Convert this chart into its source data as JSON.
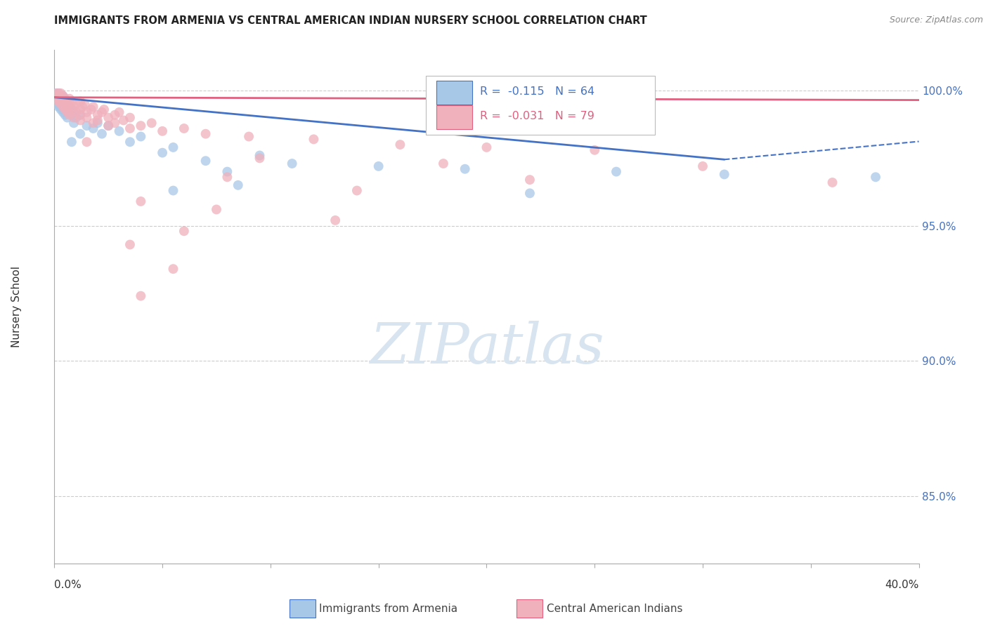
{
  "title": "IMMIGRANTS FROM ARMENIA VS CENTRAL AMERICAN INDIAN NURSERY SCHOOL CORRELATION CHART",
  "source": "Source: ZipAtlas.com",
  "ylabel": "Nursery School",
  "yticks_labels": [
    "85.0%",
    "90.0%",
    "95.0%",
    "100.0%"
  ],
  "ytick_values": [
    0.85,
    0.9,
    0.95,
    1.0
  ],
  "xlim": [
    0.0,
    0.4
  ],
  "ylim": [
    0.825,
    1.015
  ],
  "legend_label1": "Immigrants from Armenia",
  "legend_label2": "Central American Indians",
  "R1": -0.115,
  "N1": 64,
  "R2": -0.031,
  "N2": 79,
  "color_blue": "#A8C8E8",
  "color_pink": "#F0B0BC",
  "color_blue_line": "#4472C4",
  "color_pink_line": "#E06080",
  "background_color": "#FFFFFF",
  "grid_color": "#CCCCCC",
  "title_color": "#222222",
  "watermark_color": "#D8E4F0",
  "right_axis_color": "#4472C4",
  "scatter_blue": [
    [
      0.001,
      0.999
    ],
    [
      0.002,
      0.999
    ],
    [
      0.003,
      0.998
    ],
    [
      0.004,
      0.998
    ],
    [
      0.001,
      0.997
    ],
    [
      0.002,
      0.997
    ],
    [
      0.003,
      0.997
    ],
    [
      0.004,
      0.997
    ],
    [
      0.001,
      0.996
    ],
    [
      0.002,
      0.996
    ],
    [
      0.003,
      0.996
    ],
    [
      0.004,
      0.996
    ],
    [
      0.005,
      0.996
    ],
    [
      0.001,
      0.995
    ],
    [
      0.002,
      0.995
    ],
    [
      0.003,
      0.995
    ],
    [
      0.004,
      0.995
    ],
    [
      0.005,
      0.995
    ],
    [
      0.006,
      0.995
    ],
    [
      0.002,
      0.994
    ],
    [
      0.003,
      0.994
    ],
    [
      0.004,
      0.994
    ],
    [
      0.005,
      0.994
    ],
    [
      0.006,
      0.994
    ],
    [
      0.007,
      0.994
    ],
    [
      0.003,
      0.993
    ],
    [
      0.004,
      0.993
    ],
    [
      0.006,
      0.993
    ],
    [
      0.008,
      0.993
    ],
    [
      0.004,
      0.992
    ],
    [
      0.006,
      0.992
    ],
    [
      0.009,
      0.992
    ],
    [
      0.005,
      0.991
    ],
    [
      0.008,
      0.991
    ],
    [
      0.012,
      0.991
    ],
    [
      0.006,
      0.99
    ],
    [
      0.01,
      0.99
    ],
    [
      0.009,
      0.988
    ],
    [
      0.02,
      0.988
    ],
    [
      0.015,
      0.987
    ],
    [
      0.025,
      0.987
    ],
    [
      0.018,
      0.986
    ],
    [
      0.03,
      0.985
    ],
    [
      0.012,
      0.984
    ],
    [
      0.022,
      0.984
    ],
    [
      0.04,
      0.983
    ],
    [
      0.008,
      0.981
    ],
    [
      0.035,
      0.981
    ],
    [
      0.055,
      0.979
    ],
    [
      0.05,
      0.977
    ],
    [
      0.095,
      0.976
    ],
    [
      0.07,
      0.974
    ],
    [
      0.11,
      0.973
    ],
    [
      0.15,
      0.972
    ],
    [
      0.19,
      0.971
    ],
    [
      0.08,
      0.97
    ],
    [
      0.26,
      0.97
    ],
    [
      0.31,
      0.969
    ],
    [
      0.085,
      0.965
    ],
    [
      0.38,
      0.968
    ],
    [
      0.055,
      0.963
    ],
    [
      0.22,
      0.962
    ]
  ],
  "scatter_pink": [
    [
      0.001,
      0.999
    ],
    [
      0.002,
      0.999
    ],
    [
      0.003,
      0.999
    ],
    [
      0.001,
      0.998
    ],
    [
      0.002,
      0.998
    ],
    [
      0.004,
      0.998
    ],
    [
      0.001,
      0.997
    ],
    [
      0.002,
      0.997
    ],
    [
      0.003,
      0.997
    ],
    [
      0.005,
      0.997
    ],
    [
      0.007,
      0.997
    ],
    [
      0.002,
      0.996
    ],
    [
      0.003,
      0.996
    ],
    [
      0.005,
      0.996
    ],
    [
      0.008,
      0.996
    ],
    [
      0.012,
      0.996
    ],
    [
      0.003,
      0.995
    ],
    [
      0.005,
      0.995
    ],
    [
      0.007,
      0.995
    ],
    [
      0.01,
      0.995
    ],
    [
      0.014,
      0.995
    ],
    [
      0.004,
      0.994
    ],
    [
      0.006,
      0.994
    ],
    [
      0.009,
      0.994
    ],
    [
      0.013,
      0.994
    ],
    [
      0.018,
      0.994
    ],
    [
      0.005,
      0.993
    ],
    [
      0.008,
      0.993
    ],
    [
      0.012,
      0.993
    ],
    [
      0.017,
      0.993
    ],
    [
      0.023,
      0.993
    ],
    [
      0.006,
      0.992
    ],
    [
      0.01,
      0.992
    ],
    [
      0.015,
      0.992
    ],
    [
      0.022,
      0.992
    ],
    [
      0.03,
      0.992
    ],
    [
      0.007,
      0.991
    ],
    [
      0.012,
      0.991
    ],
    [
      0.02,
      0.991
    ],
    [
      0.028,
      0.991
    ],
    [
      0.009,
      0.99
    ],
    [
      0.015,
      0.99
    ],
    [
      0.025,
      0.99
    ],
    [
      0.035,
      0.99
    ],
    [
      0.012,
      0.989
    ],
    [
      0.02,
      0.989
    ],
    [
      0.032,
      0.989
    ],
    [
      0.018,
      0.988
    ],
    [
      0.028,
      0.988
    ],
    [
      0.045,
      0.988
    ],
    [
      0.025,
      0.987
    ],
    [
      0.04,
      0.987
    ],
    [
      0.035,
      0.986
    ],
    [
      0.06,
      0.986
    ],
    [
      0.05,
      0.985
    ],
    [
      0.07,
      0.984
    ],
    [
      0.09,
      0.983
    ],
    [
      0.12,
      0.982
    ],
    [
      0.015,
      0.981
    ],
    [
      0.16,
      0.98
    ],
    [
      0.2,
      0.979
    ],
    [
      0.25,
      0.978
    ],
    [
      0.095,
      0.975
    ],
    [
      0.18,
      0.973
    ],
    [
      0.3,
      0.972
    ],
    [
      0.08,
      0.968
    ],
    [
      0.22,
      0.967
    ],
    [
      0.36,
      0.966
    ],
    [
      0.14,
      0.963
    ],
    [
      0.04,
      0.959
    ],
    [
      0.075,
      0.956
    ],
    [
      0.13,
      0.952
    ],
    [
      0.06,
      0.948
    ],
    [
      0.035,
      0.943
    ],
    [
      0.055,
      0.934
    ],
    [
      0.04,
      0.924
    ]
  ]
}
